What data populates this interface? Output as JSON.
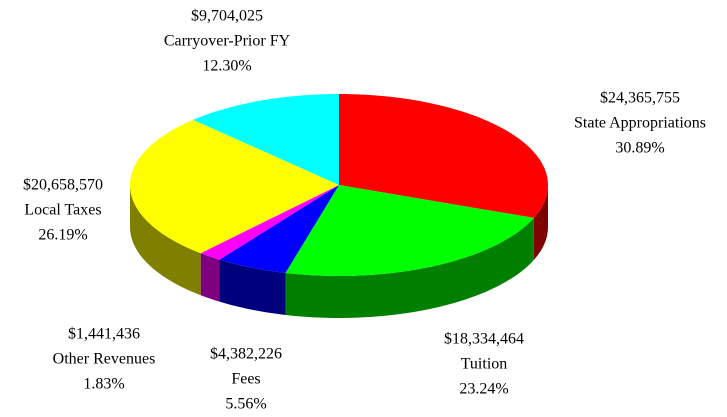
{
  "chart_data": {
    "type": "pie",
    "categories": [
      "State Appropriations",
      "Tuition",
      "Fees",
      "Other Revenues",
      "Local Taxes",
      "Carryover-Prior FY"
    ],
    "values": [
      30.89,
      23.24,
      5.56,
      1.83,
      26.19,
      12.3
    ],
    "value_labels": [
      "30.89%",
      "23.24%",
      "5.56%",
      "1.83%",
      "26.19%",
      "12.30%"
    ],
    "amount_labels": [
      "$24,365,755",
      "$18,334,464",
      "$4,382,226",
      "$1,441,436",
      "$20,658,570",
      "$9,704,025"
    ],
    "colors": [
      "#ff0000",
      "#00ff00",
      "#0000ff",
      "#ff00ff",
      "#ffff00",
      "#00ffff"
    ],
    "three_d": true
  }
}
